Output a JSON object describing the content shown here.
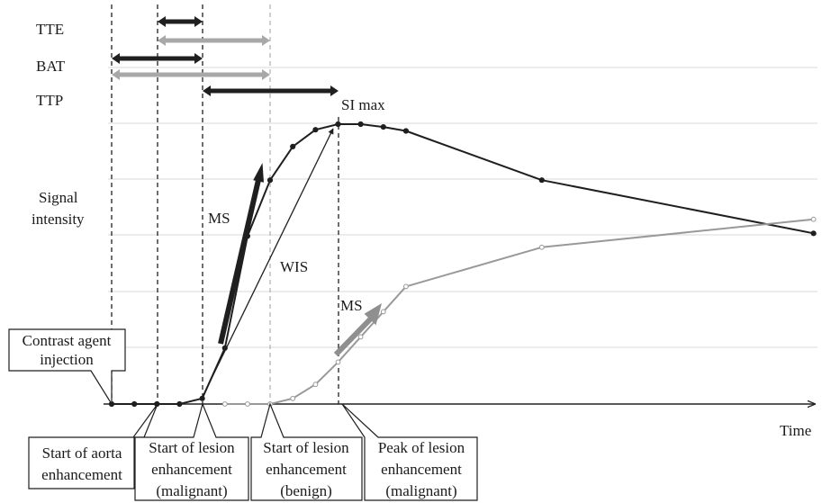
{
  "labels": {
    "tte": "TTE",
    "bat": "BAT",
    "ttp": "TTP",
    "si_max": "SI max",
    "signal_line1": "Signal",
    "signal_line2": "intensity",
    "ms_malignant": "MS",
    "wis": "WIS",
    "ms_benign": "MS",
    "time": "Time"
  },
  "callouts": {
    "injection": [
      "Contrast agent",
      "injection"
    ],
    "aorta": [
      "Start of aorta",
      "enhancement"
    ],
    "lesion_malignant": [
      "Start of lesion",
      "enhancement",
      "(malignant)"
    ],
    "lesion_benign": [
      "Start of lesion",
      "enhancement",
      "(benign)"
    ],
    "peak_malignant": [
      "Peak of lesion",
      "enhancement",
      "(malignant)"
    ]
  },
  "chart_data": {
    "type": "line",
    "xlabel": "Time",
    "ylabel": "Signal intensity",
    "series": [
      {
        "color": "#1f1f1f",
        "values": [
          [
            0,
            0
          ],
          [
            1,
            0
          ],
          [
            2,
            0
          ],
          [
            3,
            0
          ],
          [
            4,
            0.1
          ],
          [
            5,
            1
          ],
          [
            6,
            3
          ],
          [
            7,
            4
          ],
          [
            8,
            4.6
          ],
          [
            9,
            4.9
          ],
          [
            10,
            5
          ],
          [
            11,
            5
          ],
          [
            12,
            4.95
          ],
          [
            13,
            4.88
          ],
          [
            19,
            4
          ],
          [
            31,
            3.05
          ]
        ]
      },
      {
        "color": "#999999",
        "values": [
          [
            5,
            0
          ],
          [
            6,
            0
          ],
          [
            7,
            0
          ],
          [
            8,
            0.1
          ],
          [
            9,
            0.35
          ],
          [
            10,
            0.75
          ],
          [
            11,
            1.2
          ],
          [
            12,
            1.65
          ],
          [
            13,
            2.1
          ],
          [
            19,
            2.8
          ],
          [
            31,
            3.3
          ]
        ]
      }
    ],
    "markers": {
      "injection": 0,
      "aorta_start": 2,
      "lesion_start_malignant": 4,
      "lesion_start_benign": 7,
      "peak_malignant": 10
    }
  },
  "colors": {
    "malignant": "#1f1f1f",
    "benign": "#999999",
    "grid": "#d9d9d9",
    "axis": "#222222"
  }
}
